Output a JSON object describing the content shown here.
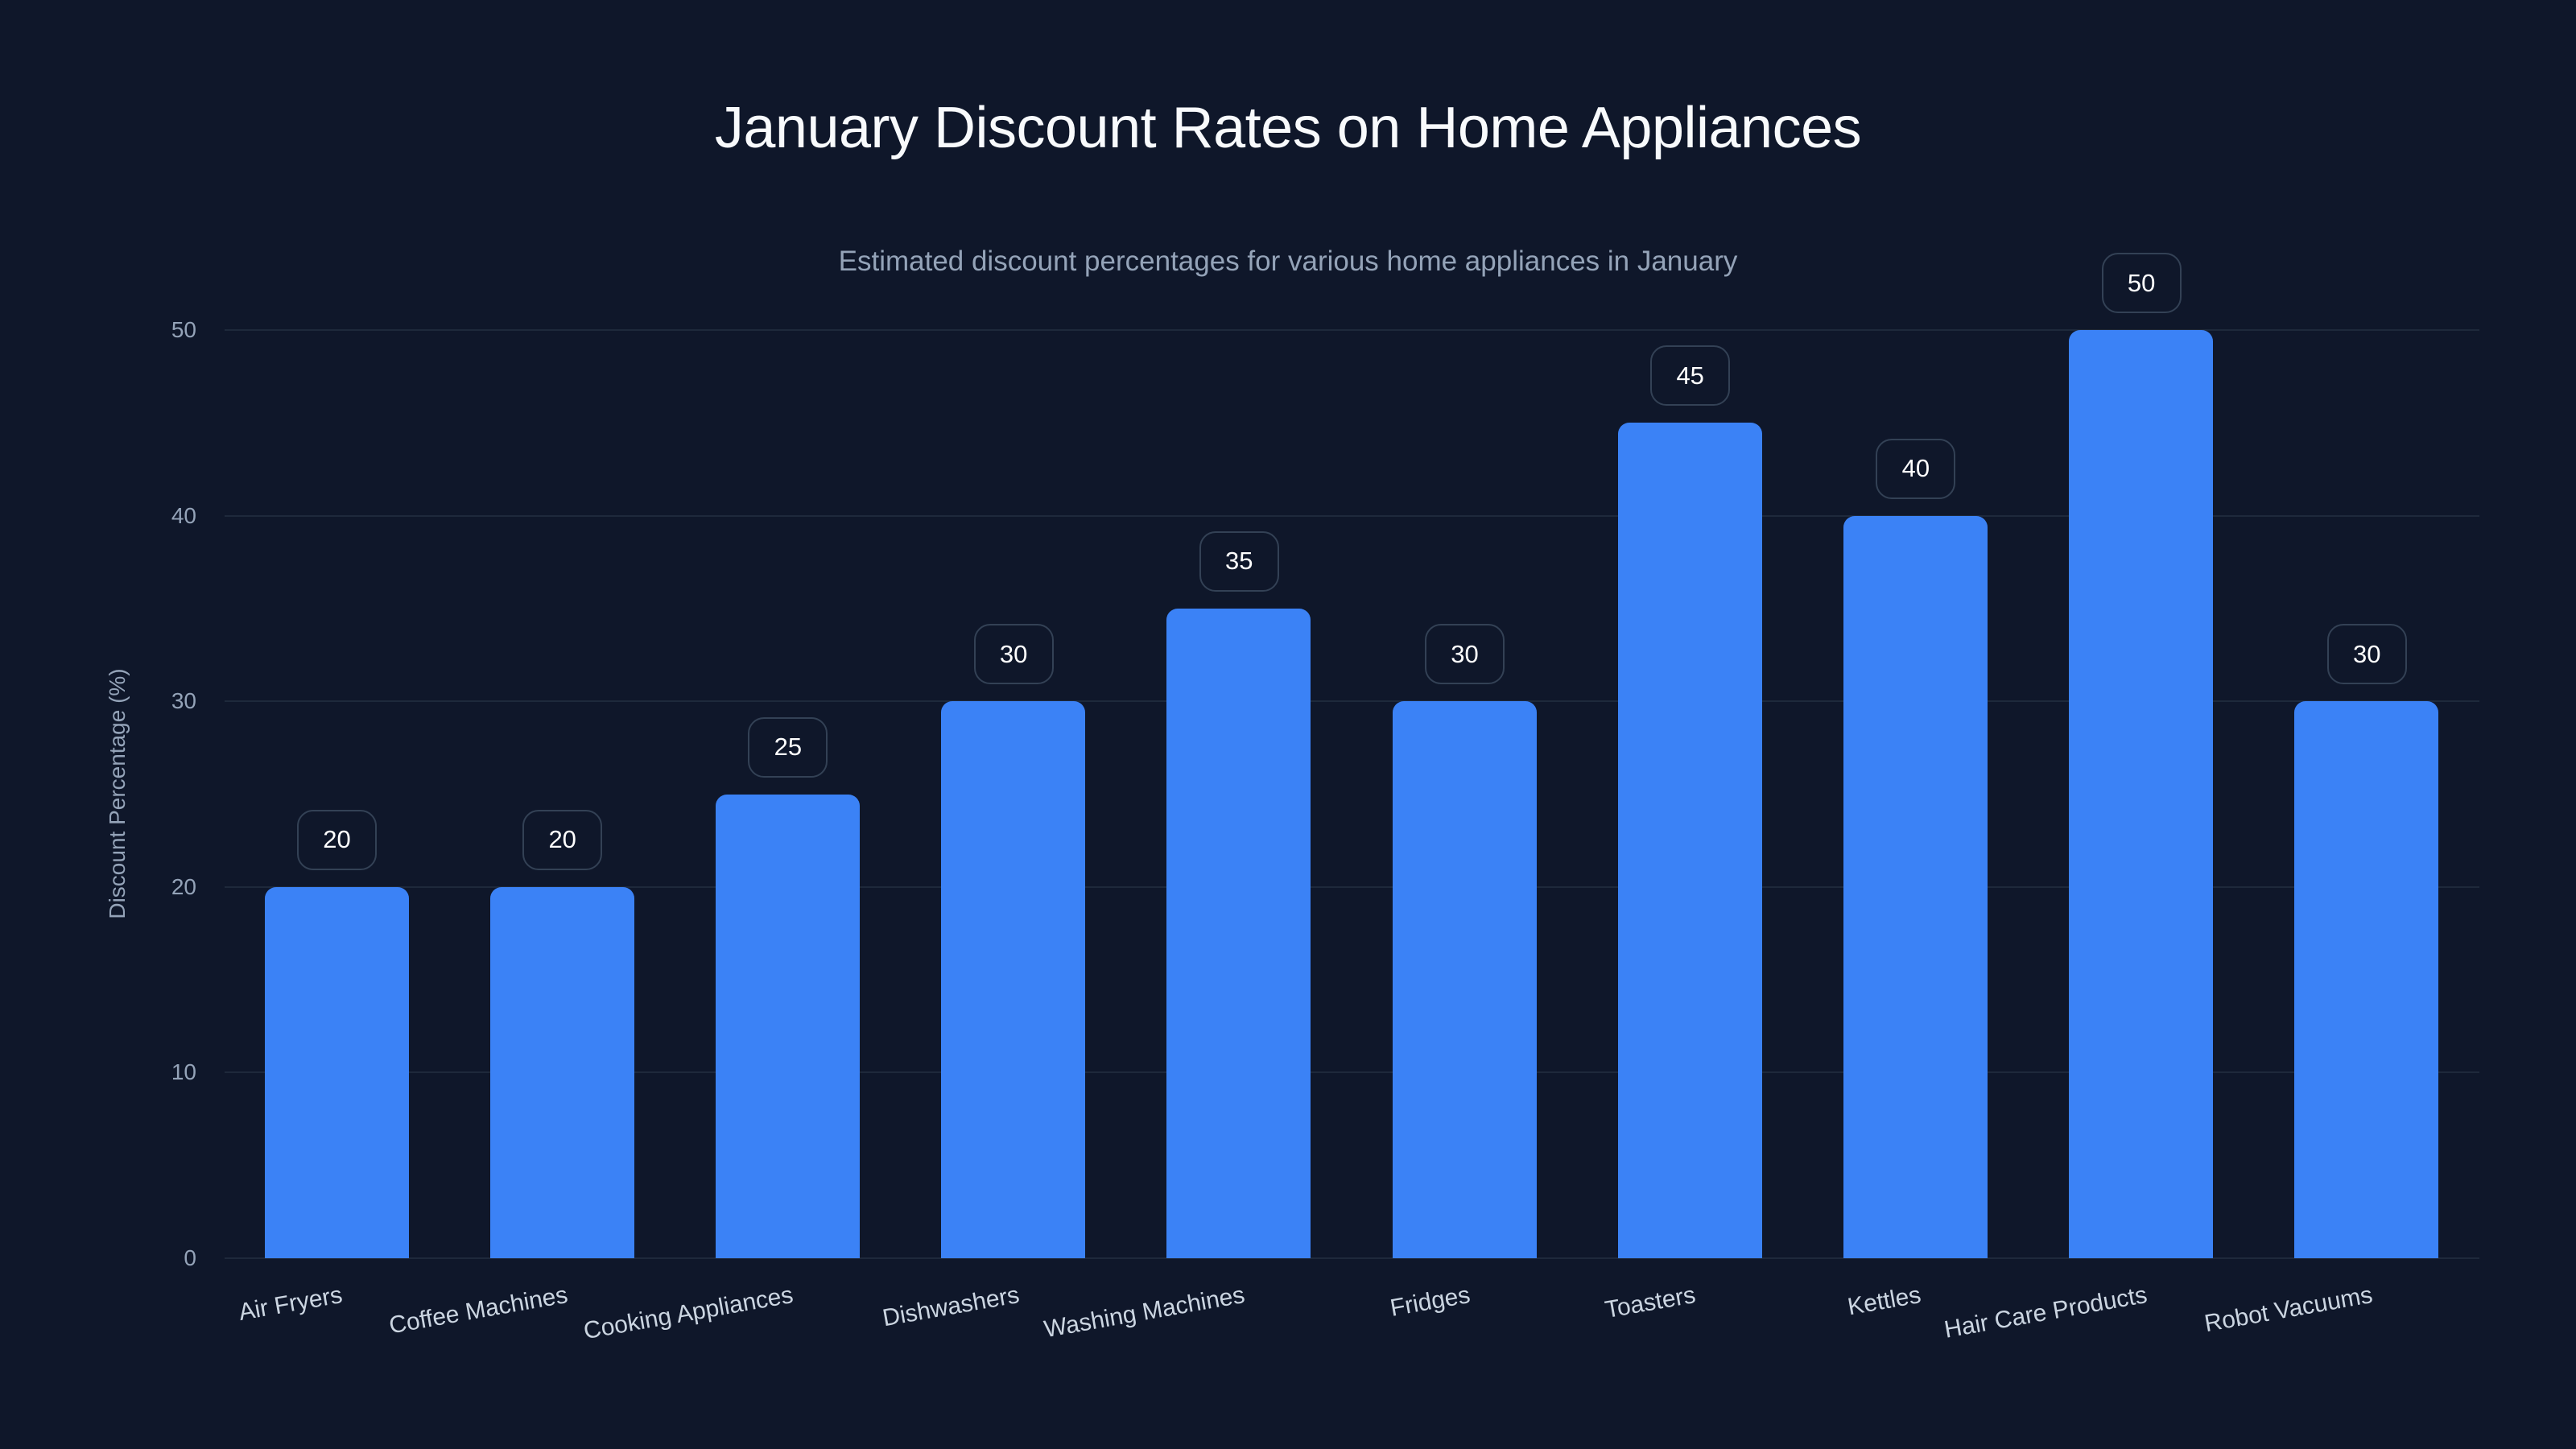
{
  "chart": {
    "title": "January Discount Rates on Home Appliances",
    "subtitle": "Estimated discount percentages for various home appliances in January",
    "ylabel": "Discount Percentage (%)",
    "yticks": [
      "0",
      "10",
      "20",
      "30",
      "40",
      "50"
    ],
    "bar_color": "#3b82f6",
    "background": "#0f172a"
  },
  "chart_data": {
    "type": "bar",
    "title": "January Discount Rates on Home Appliances",
    "subtitle": "Estimated discount percentages for various home appliances in January",
    "xlabel": "",
    "ylabel": "Discount Percentage (%)",
    "ylim": [
      0,
      50
    ],
    "yticks": [
      0,
      10,
      20,
      30,
      40,
      50
    ],
    "grid": true,
    "legend": null,
    "categories": [
      "Air Fryers",
      "Coffee Machines",
      "Cooking Appliances",
      "Dishwashers",
      "Washing Machines",
      "Fridges",
      "Toasters",
      "Kettles",
      "Hair Care Products",
      "Robot Vacuums"
    ],
    "values": [
      20,
      20,
      25,
      30,
      35,
      30,
      45,
      40,
      50,
      30
    ],
    "data_labels": true
  }
}
